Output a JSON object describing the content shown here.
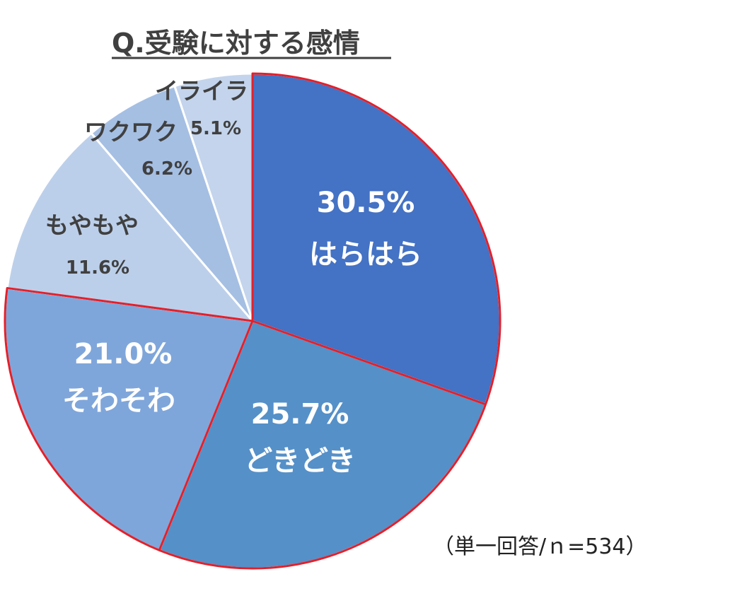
{
  "chart_data": {
    "type": "pie",
    "title": "Q.受験に対する感情",
    "slices": [
      {
        "label": "はらはら",
        "value": 30.5,
        "value_label": "30.5%",
        "color": "#4472C4"
      },
      {
        "label": "どきどき",
        "value": 25.7,
        "value_label": "25.7%",
        "color": "#5590C8"
      },
      {
        "label": "そわそわ",
        "value": 21.0,
        "value_label": "21.0%",
        "color": "#7FA6DA"
      },
      {
        "label": "もやもや",
        "value": 11.6,
        "value_label": "11.6%",
        "color": "#BCCFEA"
      },
      {
        "label": "ワクワク",
        "value": 6.2,
        "value_label": "6.2%",
        "color": "#A5BFE3"
      },
      {
        "label": "イライラ",
        "value": 5.1,
        "value_label": "5.1%",
        "color": "#C3D4EC"
      }
    ],
    "footnote": "（単一回答/ｎ=534）",
    "border_color": "#E3202A",
    "divider_color": "#ffffff"
  }
}
